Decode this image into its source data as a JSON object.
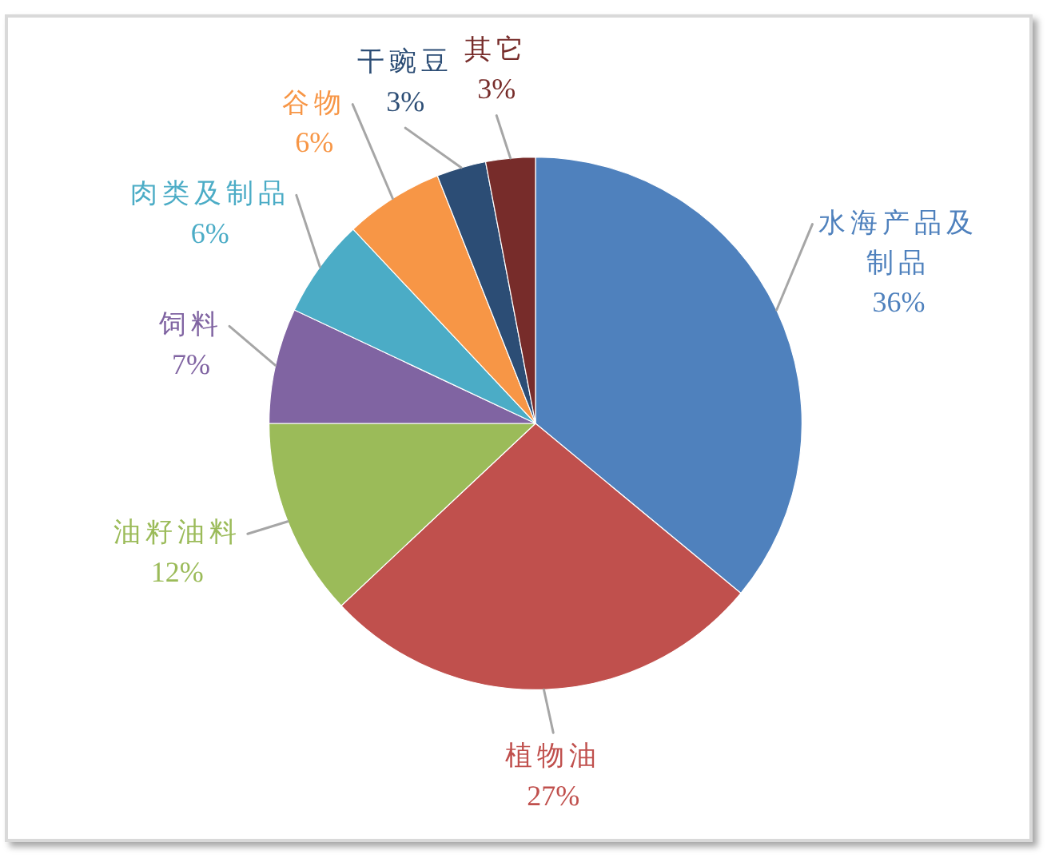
{
  "chart_data": {
    "type": "pie",
    "categories": [
      "水海产品及制品",
      "植物油",
      "油籽油料",
      "饲料",
      "肉类及制品",
      "谷物",
      "干豌豆",
      "其它"
    ],
    "values": [
      36,
      27,
      12,
      7,
      6,
      6,
      3,
      3
    ],
    "colors": [
      "#4f81bd",
      "#c0504d",
      "#9bbb59",
      "#8064a2",
      "#4bacc6",
      "#f79646",
      "#2c4d75",
      "#772c2a"
    ],
    "value_labels": [
      "36%",
      "27%",
      "12%",
      "7%",
      "6%",
      "6%",
      "3%",
      "3%"
    ]
  }
}
